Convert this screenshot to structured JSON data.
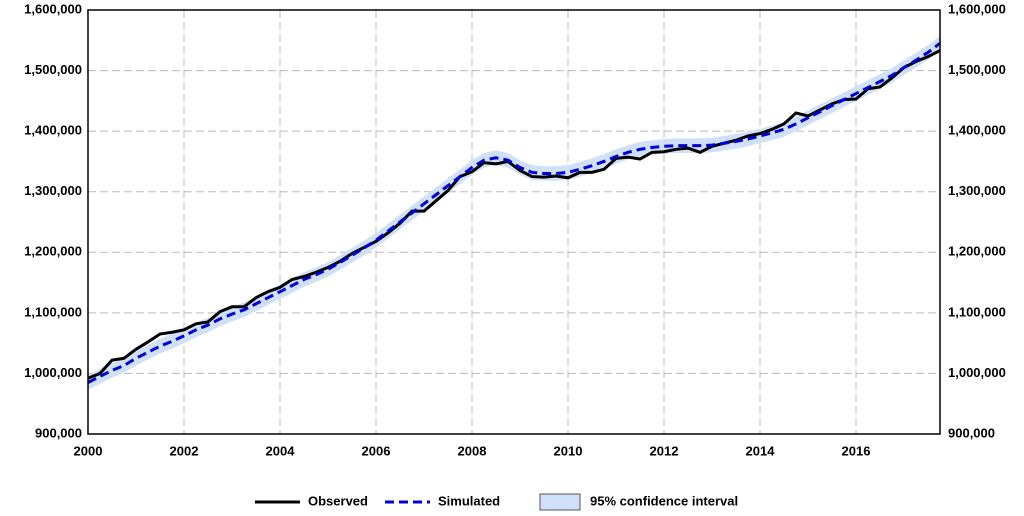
{
  "chart_data": {
    "type": "line",
    "x": [
      2000,
      2000.25,
      2000.5,
      2000.75,
      2001,
      2001.25,
      2001.5,
      2001.75,
      2002,
      2002.25,
      2002.5,
      2002.75,
      2003,
      2003.25,
      2003.5,
      2003.75,
      2004,
      2004.25,
      2004.5,
      2004.75,
      2005,
      2005.25,
      2005.5,
      2005.75,
      2006,
      2006.25,
      2006.5,
      2006.75,
      2007,
      2007.25,
      2007.5,
      2007.75,
      2008,
      2008.25,
      2008.5,
      2008.75,
      2009,
      2009.25,
      2009.5,
      2009.75,
      2010,
      2010.25,
      2010.5,
      2010.75,
      2011,
      2011.25,
      2011.5,
      2011.75,
      2012,
      2012.25,
      2012.5,
      2012.75,
      2013,
      2013.25,
      2013.5,
      2013.75,
      2014,
      2014.25,
      2014.5,
      2014.75,
      2015,
      2015.25,
      2015.5,
      2015.75,
      2016,
      2016.25,
      2016.5,
      2016.75,
      2017,
      2017.25,
      2017.5,
      2017.75
    ],
    "xlim": [
      2000,
      2017.75
    ],
    "xticks": [
      2000,
      2002,
      2004,
      2006,
      2008,
      2010,
      2012,
      2014,
      2016
    ],
    "ylim": [
      900000,
      1600000
    ],
    "yticks": [
      {
        "value": 900000,
        "label": "900,000"
      },
      {
        "value": 1000000,
        "label": "1,000,000"
      },
      {
        "value": 1100000,
        "label": "1,100,000"
      },
      {
        "value": 1200000,
        "label": "1,200,000"
      },
      {
        "value": 1300000,
        "label": "1,300,000"
      },
      {
        "value": 1400000,
        "label": "1,400,000"
      },
      {
        "value": 1500000,
        "label": "1,500,000"
      },
      {
        "value": 1600000,
        "label": "1,600,000"
      }
    ],
    "grid": true,
    "legend": "bottom",
    "band": {
      "name": "95% confidence interval",
      "color": "#cfe0f8",
      "lower": [
        973000,
        983000,
        993000,
        1001000,
        1013000,
        1023000,
        1033000,
        1041000,
        1050000,
        1060000,
        1068000,
        1078000,
        1086000,
        1093000,
        1103000,
        1113000,
        1123000,
        1133000,
        1143000,
        1151000,
        1160000,
        1171000,
        1183000,
        1195000,
        1208000,
        1223000,
        1238000,
        1253000,
        1268000,
        1283000,
        1298000,
        1313000,
        1328000,
        1340000,
        1344000,
        1340000,
        1328000,
        1320000,
        1318000,
        1318000,
        1320000,
        1325000,
        1331000,
        1338000,
        1346000,
        1353000,
        1358000,
        1361000,
        1363000,
        1364000,
        1364000,
        1364000,
        1365000,
        1368000,
        1371000,
        1375000,
        1380000,
        1385000,
        1391000,
        1400000,
        1410000,
        1420000,
        1430000,
        1440000,
        1450000,
        1460000,
        1470000,
        1480000,
        1493000,
        1505000,
        1518000,
        1533000
      ],
      "upper": [
        997000,
        1007000,
        1017000,
        1025000,
        1037000,
        1047000,
        1057000,
        1065000,
        1074000,
        1084000,
        1092000,
        1102000,
        1110000,
        1117000,
        1127000,
        1137000,
        1147000,
        1157000,
        1167000,
        1175000,
        1184000,
        1195000,
        1207000,
        1219000,
        1232000,
        1247000,
        1262000,
        1277000,
        1292000,
        1307000,
        1322000,
        1337000,
        1352000,
        1364000,
        1368000,
        1364000,
        1352000,
        1344000,
        1342000,
        1342000,
        1344000,
        1349000,
        1355000,
        1362000,
        1370000,
        1377000,
        1382000,
        1385000,
        1387000,
        1388000,
        1388000,
        1388000,
        1389000,
        1392000,
        1395000,
        1399000,
        1404000,
        1409000,
        1415000,
        1424000,
        1434000,
        1444000,
        1454000,
        1464000,
        1474000,
        1484000,
        1494000,
        1504000,
        1517000,
        1529000,
        1542000,
        1557000
      ]
    },
    "series": [
      {
        "name": "Observed",
        "color": "#000000",
        "dashed": false,
        "values": [
          992000,
          1000000,
          1022000,
          1025000,
          1040000,
          1052000,
          1065000,
          1068000,
          1072000,
          1082000,
          1085000,
          1102000,
          1110000,
          1110000,
          1125000,
          1135000,
          1142000,
          1155000,
          1160000,
          1167000,
          1175000,
          1185000,
          1198000,
          1208000,
          1218000,
          1232000,
          1248000,
          1268000,
          1268000,
          1285000,
          1302000,
          1325000,
          1333000,
          1348000,
          1346000,
          1350000,
          1335000,
          1325000,
          1324000,
          1326000,
          1323000,
          1332000,
          1332000,
          1337000,
          1355000,
          1357000,
          1354000,
          1365000,
          1366000,
          1370000,
          1372000,
          1365000,
          1375000,
          1380000,
          1385000,
          1392000,
          1396000,
          1403000,
          1412000,
          1430000,
          1425000,
          1435000,
          1445000,
          1452000,
          1453000,
          1470000,
          1473000,
          1488000,
          1505000,
          1515000,
          1523000,
          1533000
        ]
      },
      {
        "name": "Simulated",
        "color": "#0000dd",
        "dashed": true,
        "values": [
          985000,
          995000,
          1005000,
          1013000,
          1025000,
          1035000,
          1045000,
          1053000,
          1062000,
          1072000,
          1080000,
          1090000,
          1098000,
          1105000,
          1115000,
          1125000,
          1135000,
          1145000,
          1155000,
          1163000,
          1172000,
          1183000,
          1195000,
          1207000,
          1220000,
          1235000,
          1250000,
          1265000,
          1280000,
          1295000,
          1310000,
          1325000,
          1340000,
          1352000,
          1356000,
          1352000,
          1340000,
          1332000,
          1330000,
          1330000,
          1332000,
          1337000,
          1343000,
          1350000,
          1358000,
          1365000,
          1370000,
          1373000,
          1375000,
          1376000,
          1376000,
          1376000,
          1377000,
          1380000,
          1383000,
          1387000,
          1392000,
          1397000,
          1403000,
          1412000,
          1422000,
          1432000,
          1442000,
          1452000,
          1462000,
          1472000,
          1482000,
          1492000,
          1505000,
          1517000,
          1530000,
          1545000
        ]
      }
    ]
  }
}
